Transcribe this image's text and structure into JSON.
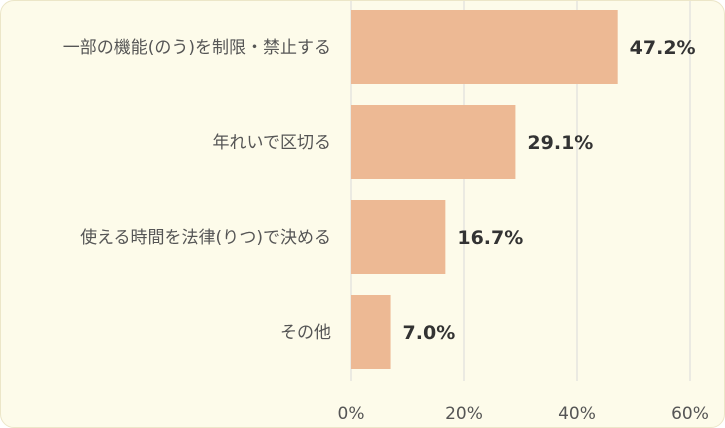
{
  "chart_data": {
    "type": "bar",
    "orientation": "horizontal",
    "categories": [
      "一部の機能(のう)を制限・禁止する",
      "年れいで区切る",
      "使える時間を法律(りつ)で決める",
      "その他"
    ],
    "values": [
      47.2,
      29.1,
      16.7,
      7.0
    ],
    "value_labels": [
      "47.2%",
      "29.1%",
      "16.7%",
      "7.0%"
    ],
    "xlim": [
      0,
      60
    ],
    "ticks": [
      0,
      20,
      40,
      60
    ],
    "tick_labels": [
      "0%",
      "20%",
      "40%",
      "60%"
    ],
    "grid": true,
    "colors": {
      "bar": "#edb994",
      "background": "#fdfbea",
      "grid": "#d9d9d9"
    }
  }
}
